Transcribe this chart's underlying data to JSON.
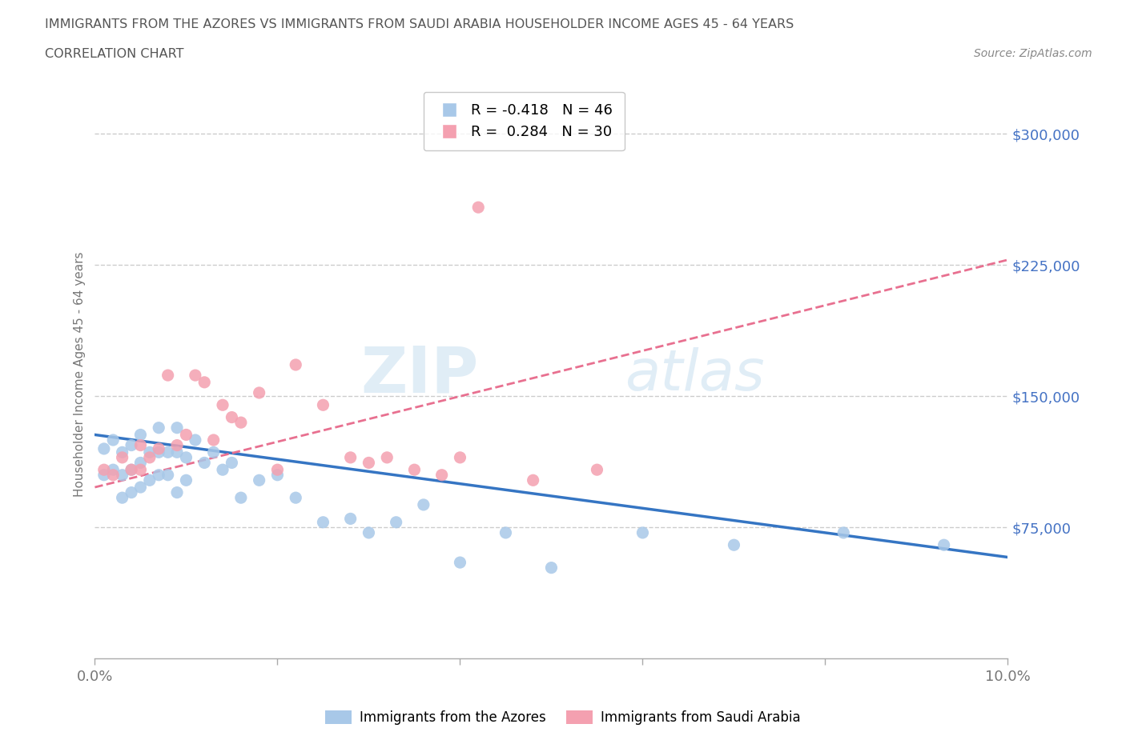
{
  "title_line1": "IMMIGRANTS FROM THE AZORES VS IMMIGRANTS FROM SAUDI ARABIA HOUSEHOLDER INCOME AGES 45 - 64 YEARS",
  "title_line2": "CORRELATION CHART",
  "source_text": "Source: ZipAtlas.com",
  "ylabel": "Householder Income Ages 45 - 64 years",
  "xlim": [
    0.0,
    0.1
  ],
  "ylim": [
    0,
    325000
  ],
  "yticks": [
    75000,
    150000,
    225000,
    300000
  ],
  "xticks": [
    0.0,
    0.02,
    0.04,
    0.06,
    0.08,
    0.1
  ],
  "xtick_labels": [
    "0.0%",
    "",
    "",
    "",
    "",
    "10.0%"
  ],
  "background_color": "#ffffff",
  "grid_color": "#cccccc",
  "watermark_text": "ZIP",
  "watermark_text2": "atlas",
  "azores_color": "#a8c8e8",
  "saudi_color": "#f4a0b0",
  "azores_line_color": "#3575c3",
  "saudi_line_color": "#e87090",
  "azores_R": -0.418,
  "azores_N": 46,
  "saudi_R": 0.284,
  "saudi_N": 30,
  "azores_scatter_x": [
    0.001,
    0.001,
    0.002,
    0.002,
    0.003,
    0.003,
    0.003,
    0.004,
    0.004,
    0.004,
    0.005,
    0.005,
    0.005,
    0.006,
    0.006,
    0.007,
    0.007,
    0.007,
    0.008,
    0.008,
    0.009,
    0.009,
    0.009,
    0.01,
    0.01,
    0.011,
    0.012,
    0.013,
    0.014,
    0.015,
    0.016,
    0.018,
    0.02,
    0.022,
    0.025,
    0.028,
    0.03,
    0.033,
    0.036,
    0.04,
    0.045,
    0.05,
    0.06,
    0.07,
    0.082,
    0.093
  ],
  "azores_scatter_y": [
    120000,
    105000,
    125000,
    108000,
    118000,
    105000,
    92000,
    122000,
    108000,
    95000,
    128000,
    112000,
    98000,
    118000,
    102000,
    132000,
    118000,
    105000,
    118000,
    105000,
    132000,
    118000,
    95000,
    115000,
    102000,
    125000,
    112000,
    118000,
    108000,
    112000,
    92000,
    102000,
    105000,
    92000,
    78000,
    80000,
    72000,
    78000,
    88000,
    55000,
    72000,
    52000,
    72000,
    65000,
    72000,
    65000
  ],
  "saudi_scatter_x": [
    0.001,
    0.002,
    0.003,
    0.004,
    0.005,
    0.005,
    0.006,
    0.007,
    0.008,
    0.009,
    0.01,
    0.011,
    0.012,
    0.013,
    0.014,
    0.015,
    0.016,
    0.018,
    0.02,
    0.022,
    0.025,
    0.028,
    0.03,
    0.032,
    0.035,
    0.038,
    0.04,
    0.042,
    0.048,
    0.055
  ],
  "saudi_scatter_y": [
    108000,
    105000,
    115000,
    108000,
    122000,
    108000,
    115000,
    120000,
    162000,
    122000,
    128000,
    162000,
    158000,
    125000,
    145000,
    138000,
    135000,
    152000,
    108000,
    168000,
    145000,
    115000,
    112000,
    115000,
    108000,
    105000,
    115000,
    258000,
    102000,
    108000
  ],
  "azores_trendline_x": [
    0.0,
    0.1
  ],
  "azores_trendline_y": [
    128000,
    58000
  ],
  "saudi_trendline_x": [
    0.0,
    0.1
  ],
  "saudi_trendline_y": [
    98000,
    228000
  ]
}
